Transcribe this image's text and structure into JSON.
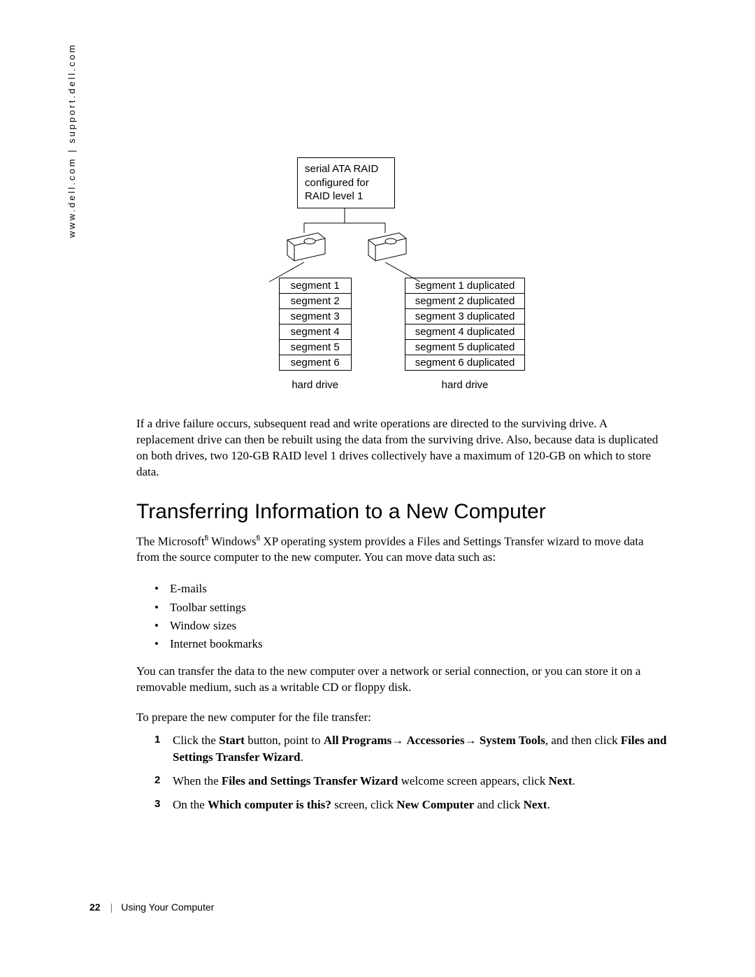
{
  "sidebar": {
    "text": "www.dell.com | support.dell.com"
  },
  "diagram": {
    "raid_label": "serial ATA RAID configured for RAID level 1",
    "left_caption": "hard drive",
    "right_caption": "hard drive",
    "left_segments": [
      "segment 1",
      "segment 2",
      "segment 3",
      "segment 4",
      "segment 5",
      "segment 6"
    ],
    "right_segments": [
      "segment 1 duplicated",
      "segment 2 duplicated",
      "segment 3 duplicated",
      "segment 4 duplicated",
      "segment 5 duplicated",
      "segment 6 duplicated"
    ],
    "colors": {
      "stroke": "#000000",
      "fill": "#ffffff"
    }
  },
  "para1": "If a drive failure occurs, subsequent read and write operations are directed to the surviving drive. A replacement drive can then be rebuilt using the data from the surviving drive. Also, because data is duplicated on both drives, two 120-GB RAID level 1 drives collectively have a maximum of 120-GB on which to store data.",
  "heading": "Transferring Information to a New Computer",
  "intro_parts": {
    "p1a": "The Microsoft",
    "p1b": " Windows",
    "p1c": " XP operating system provides a Files and Settings Transfer wizard to move data from the source computer to the new computer. You can move data such as:",
    "sup": "fi"
  },
  "bullets": [
    "E-mails",
    "Toolbar settings",
    "Window sizes",
    "Internet bookmarks"
  ],
  "para2": "You can transfer the data to the new computer over a network or serial connection, or you can store it on a removable medium, such as a writable CD or floppy disk.",
  "para3": "To prepare the new computer for the file transfer:",
  "steps": {
    "s1": {
      "a": "Click the ",
      "b1": "Start",
      "c": " button, point to ",
      "b2": "All Programs",
      "arrow1": "→ ",
      "b3": "Accessories",
      "arrow2": "→ ",
      "b4": "System Tools",
      "d": ", and then click ",
      "b5": "Files and Settings Transfer Wizard",
      "e": "."
    },
    "s2": {
      "a": "When the ",
      "b1": "Files and Settings Transfer Wizard",
      "c": " welcome screen appears, click ",
      "b2": "Next",
      "d": "."
    },
    "s3": {
      "a": "On the ",
      "b1": "Which computer is this?",
      "c": " screen, click ",
      "b2": "New Computer",
      "d": " and click ",
      "b3": "Next",
      "e": "."
    }
  },
  "footer": {
    "page": "22",
    "section": "Using Your Computer"
  }
}
